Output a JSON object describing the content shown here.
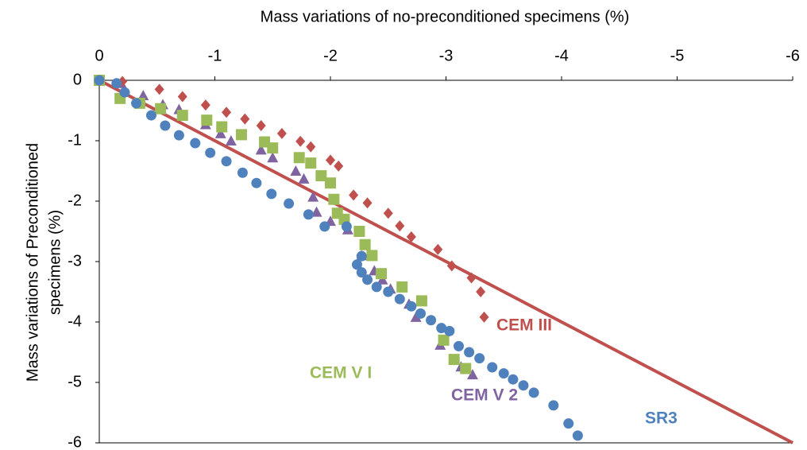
{
  "chart_data": {
    "type": "scatter",
    "x_label": "Mass variations of no-preconditioned specimens (%)",
    "y_label": [
      "Mass variations of Preconditioned",
      "specimens (%)"
    ],
    "xlim": [
      0,
      -6
    ],
    "ylim": [
      -6,
      0
    ],
    "xticks": [
      0,
      -1,
      -2,
      -3,
      -4,
      -5,
      -6
    ],
    "yticks": [
      0,
      -1,
      -2,
      -3,
      -4,
      -5,
      -6
    ],
    "reference_line": {
      "color": "#c0504d",
      "x": [
        0,
        -6
      ],
      "values": [
        0,
        -6
      ]
    },
    "series": [
      {
        "name": "SR3",
        "color": "#4f81bd",
        "marker": "circle",
        "x": [
          0,
          -0.15,
          -0.22,
          -0.32,
          -0.45,
          -0.57,
          -0.69,
          -0.83,
          -0.96,
          -1.1,
          -1.24,
          -1.36,
          -1.49,
          -1.64,
          -1.81,
          -1.95,
          -2.14,
          -2.27,
          -2.23,
          -2.27,
          -2.32,
          -2.4,
          -2.5,
          -2.6,
          -2.7,
          -2.78,
          -2.87,
          -2.96,
          -3.03,
          -3.11,
          -3.2,
          -3.29,
          -3.4,
          -3.5,
          -3.58,
          -3.67,
          -3.76,
          -3.93,
          -4.06,
          -4.14
        ],
        "values": [
          0,
          -0.05,
          -0.2,
          -0.38,
          -0.58,
          -0.75,
          -0.91,
          -1.04,
          -1.2,
          -1.34,
          -1.53,
          -1.7,
          -1.88,
          -2.04,
          -2.22,
          -2.42,
          -2.42,
          -2.91,
          -3.05,
          -3.18,
          -3.3,
          -3.42,
          -3.5,
          -3.62,
          -3.74,
          -3.86,
          -3.97,
          -4.1,
          -4.15,
          -4.4,
          -4.5,
          -4.6,
          -4.75,
          -4.85,
          -4.95,
          -5.05,
          -5.17,
          -5.38,
          -5.68,
          -5.88
        ]
      },
      {
        "name": "CEM III",
        "color": "#c0504d",
        "marker": "diamond",
        "x": [
          0,
          -0.2,
          -0.52,
          -0.72,
          -0.92,
          -1.1,
          -1.26,
          -1.4,
          -1.58,
          -1.74,
          -1.83,
          -2.0,
          -2.07,
          -2.2,
          -2.32,
          -2.5,
          -2.6,
          -2.7,
          -2.93,
          -3.05,
          -3.22,
          -3.3,
          -3.33
        ],
        "values": [
          0,
          -0.02,
          -0.15,
          -0.27,
          -0.41,
          -0.53,
          -0.64,
          -0.75,
          -0.88,
          -1.01,
          -1.1,
          -1.32,
          -1.42,
          -1.9,
          -2.03,
          -2.2,
          -2.41,
          -2.59,
          -2.8,
          -3.07,
          -3.27,
          -3.5,
          -3.92
        ]
      },
      {
        "name": "CEM V I",
        "color": "#9bbb59",
        "marker": "square",
        "x": [
          0,
          -0.18,
          -0.35,
          -0.53,
          -0.72,
          -0.93,
          -1.06,
          -1.23,
          -1.43,
          -1.5,
          -1.73,
          -1.83,
          -1.92,
          -2.0,
          -2.03,
          -2.06,
          -2.12,
          -2.25,
          -2.3,
          -2.36,
          -2.44,
          -2.62,
          -2.79,
          -2.98,
          -3.07,
          -3.17
        ],
        "values": [
          0,
          -0.3,
          -0.38,
          -0.47,
          -0.58,
          -0.66,
          -0.77,
          -0.9,
          -1.02,
          -1.12,
          -1.28,
          -1.37,
          -1.58,
          -1.7,
          -1.97,
          -2.2,
          -2.3,
          -2.5,
          -2.72,
          -2.9,
          -3.2,
          -3.42,
          -3.65,
          -4.3,
          -4.62,
          -4.77
        ]
      },
      {
        "name": "CEM V 2",
        "color": "#8064a2",
        "marker": "triangle",
        "x": [
          0,
          -0.19,
          -0.38,
          -0.55,
          -0.69,
          -0.92,
          -1.05,
          -1.14,
          -1.4,
          -1.5,
          -1.7,
          -1.77,
          -1.85,
          -1.88,
          -2.0,
          -2.15,
          -2.27,
          -2.38,
          -2.45,
          -2.52,
          -2.68,
          -2.74,
          -2.95,
          -3.13,
          -3.23
        ],
        "values": [
          0,
          -0.05,
          -0.25,
          -0.4,
          -0.48,
          -0.73,
          -0.88,
          -1.0,
          -1.15,
          -1.28,
          -1.5,
          -1.63,
          -1.93,
          -2.18,
          -2.33,
          -2.47,
          -2.9,
          -3.15,
          -3.3,
          -3.45,
          -3.7,
          -3.92,
          -4.38,
          -4.74,
          -4.87
        ]
      }
    ]
  }
}
